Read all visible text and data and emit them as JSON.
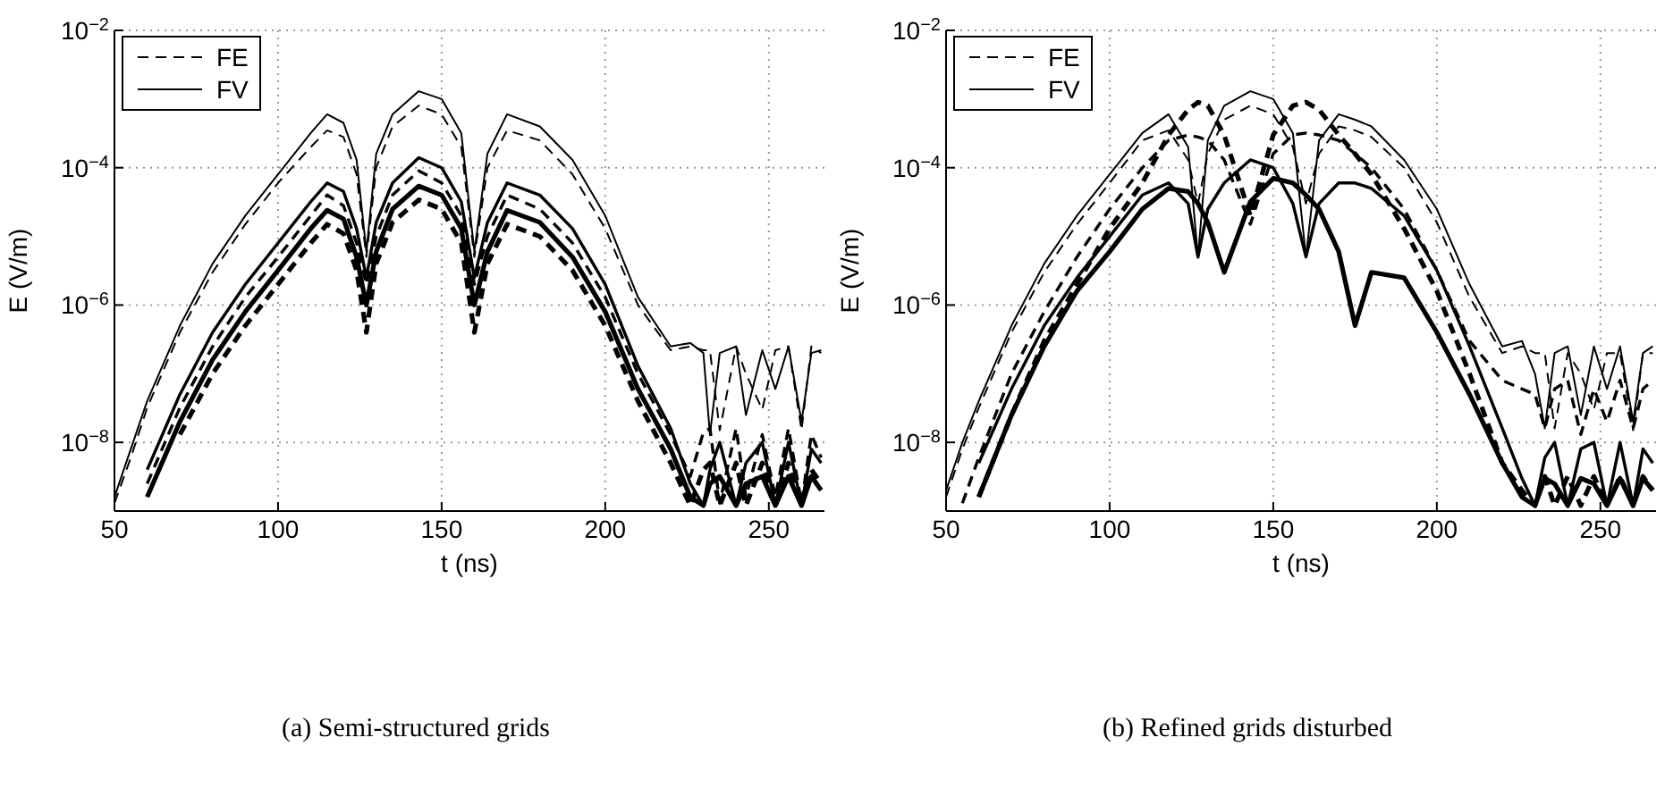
{
  "chart_data": [
    {
      "type": "line",
      "xlabel": "t (ns)",
      "ylabel": "E (V/m)",
      "annotations": [
        "(a) Semi-structured grids"
      ],
      "log": "y",
      "grid": true,
      "legend": "top left",
      "xlim": [
        50,
        267
      ],
      "xticks": [
        50,
        100,
        150,
        200,
        250
      ],
      "ylim": [
        1e-09,
        0.01
      ],
      "yticks": [
        {
          "value": 1e-08,
          "label": "10$^{−8}$"
        },
        {
          "value": 1e-06,
          "label": "10$^{−6}$"
        },
        {
          "value": 0.0001,
          "label": "10$^{−4}$"
        },
        {
          "value": 0.01,
          "label": "10$^{−2}$"
        }
      ],
      "x": [
        50,
        55,
        60,
        70,
        80,
        90,
        100,
        110,
        115,
        120,
        124,
        127,
        130,
        135,
        143,
        150,
        156,
        160,
        164,
        170,
        180,
        190,
        200,
        210,
        220,
        226,
        230,
        232,
        235,
        240,
        243,
        248,
        252,
        256,
        260,
        263,
        266
      ],
      "series": [
        {
          "name": "FE",
          "color": "#000000",
          "line_style": "dashed",
          "values": [
            1.3e-09,
            6e-09,
            3.2e-08,
            4e-07,
            3e-06,
            1.5e-05,
            6e-05,
            0.0002,
            0.00035,
            0.00028,
            8e-05,
            5e-06,
            0.0001,
            0.0004,
            0.0008,
            0.0006,
            0.0002,
            5e-06,
            0.0001,
            0.00035,
            0.00025,
            8e-05,
            1.3e-05,
            1e-06,
            2.2e-07,
            2.5e-07,
            2.2e-07,
            2.2e-07,
            1.5e-08,
            2.5e-07,
            1e-07,
            3e-08,
            2.2e-07,
            2.5e-07,
            1.5e-08,
            2.5e-07,
            2e-07
          ]
        },
        {
          "name": "FV",
          "color": "#000000",
          "line_style": "solid",
          "values": [
            1.6e-09,
            8e-09,
            4e-08,
            5e-07,
            4e-06,
            2e-05,
            8e-05,
            0.00032,
            0.0006,
            0.00045,
            0.00013,
            6e-06,
            0.00016,
            0.0006,
            0.0013,
            0.001,
            0.00032,
            6e-06,
            0.00016,
            0.0006,
            0.0004,
            0.00013,
            2e-05,
            1.3e-06,
            2.5e-07,
            2.8e-07,
            2e-07,
            1.3e-08,
            2e-07,
            2.5e-07,
            2.5e-08,
            2.2e-07,
            6e-08,
            2.5e-07,
            2e-08,
            2e-07,
            2.2e-07
          ]
        },
        {
          "color": "#000000",
          "line_style": "dashed",
          "values": [
            null,
            null,
            2.5e-09,
            3.2e-08,
            2.5e-07,
            1.3e-06,
            5e-06,
            2e-05,
            4e-05,
            2.8e-05,
            8e-06,
            2e-06,
            1e-05,
            4e-05,
            9e-05,
            6e-05,
            2e-05,
            2e-06,
            1e-05,
            4e-05,
            2.5e-05,
            8e-06,
            1.3e-06,
            1e-07,
            1.3e-08,
            3.2e-09,
            1.4e-08,
            1.6e-08,
            1.3e-09,
            1.6e-08,
            1.6e-09,
            1.3e-08,
            1.6e-09,
            1.6e-08,
            1.3e-09,
            1.3e-08,
            6e-09
          ]
        },
        {
          "color": "#000000",
          "line_style": "solid",
          "values": [
            null,
            null,
            4e-09,
            5e-08,
            4e-07,
            2e-06,
            8e-06,
            3.2e-05,
            6e-05,
            4.5e-05,
            1.3e-05,
            2.5e-06,
            1.6e-05,
            6e-05,
            0.00014,
            0.0001,
            3.2e-05,
            2.5e-06,
            1.6e-05,
            6e-05,
            4e-05,
            1.3e-05,
            2e-06,
            1.3e-07,
            1.6e-08,
            2.5e-09,
            1.2e-09,
            4e-09,
            1e-08,
            1.2e-09,
            5e-09,
            1e-08,
            1.2e-09,
            1e-08,
            1.2e-09,
            8e-09,
            5e-09
          ]
        },
        {
          "color": "#000000",
          "line_style": "dashed",
          "values": [
            null,
            null,
            null,
            1.3e-08,
            1e-07,
            5e-07,
            2e-06,
            8e-06,
            1.5e-05,
            1.1e-05,
            3.2e-06,
            4e-07,
            4e-06,
            1.6e-05,
            3.4e-05,
            2.5e-05,
            8e-06,
            4e-07,
            4e-06,
            1.5e-05,
            1e-05,
            3.2e-06,
            5e-07,
            4e-08,
            5e-09,
            1.2e-09,
            4e-09,
            5e-09,
            1.2e-09,
            5e-09,
            1.2e-09,
            5e-09,
            1.2e-09,
            5e-09,
            1.2e-09,
            4e-09,
            2.5e-09
          ]
        },
        {
          "color": "#000000",
          "line_style": "solid",
          "values": [
            null,
            null,
            1.6e-09,
            2e-08,
            1.6e-07,
            8e-07,
            3.2e-06,
            1.3e-05,
            2.4e-05,
            1.8e-05,
            5e-06,
            1e-06,
            6e-06,
            2.5e-05,
            5.4e-05,
            4e-05,
            1.3e-05,
            1e-06,
            6e-06,
            2.4e-05,
            1.6e-05,
            5e-06,
            8e-07,
            6e-08,
            8e-09,
            1.6e-09,
            1.2e-09,
            2.5e-09,
            3.2e-09,
            1.2e-09,
            2.5e-09,
            3.2e-09,
            1.2e-09,
            3.2e-09,
            1.2e-09,
            3.2e-09,
            2e-09
          ]
        }
      ]
    },
    {
      "type": "line",
      "xlabel": "t (ns)",
      "ylabel": "E (V/m)",
      "annotations": [
        "(b) Refined grids disturbed"
      ],
      "log": "y",
      "grid": true,
      "legend": "top left",
      "xlim": [
        50,
        267
      ],
      "xticks": [
        50,
        100,
        150,
        200,
        250
      ],
      "ylim": [
        1e-09,
        0.01
      ],
      "yticks": [
        {
          "value": 1e-08,
          "label": "10$^{−8}$"
        },
        {
          "value": 1e-06,
          "label": "10$^{−6}$"
        },
        {
          "value": 0.0001,
          "label": "10$^{−4}$"
        },
        {
          "value": 0.01,
          "label": "10$^{−2}$"
        }
      ],
      "x": [
        50,
        55,
        60,
        70,
        80,
        90,
        100,
        110,
        118,
        124,
        127,
        130,
        135,
        143,
        150,
        156,
        160,
        164,
        170,
        175,
        180,
        190,
        200,
        210,
        220,
        226,
        230,
        233,
        236,
        240,
        244,
        248,
        252,
        256,
        260,
        263,
        266
      ],
      "series": [
        {
          "name": "FE",
          "color": "#000000",
          "line_style": "dashed",
          "values": [
            1.6e-09,
            8e-09,
            3.2e-08,
            4e-07,
            3e-06,
            1.5e-05,
            6e-05,
            0.00025,
            0.00035,
            0.00013,
            3e-05,
            0.00016,
            0.0005,
            0.0008,
            0.0006,
            0.0002,
            3e-05,
            0.00016,
            0.0004,
            0.00035,
            0.00028,
            0.0001,
            1.6e-05,
            1.3e-06,
            2e-07,
            2.5e-07,
            2e-07,
            2e-07,
            1.6e-08,
            2e-07,
            1e-07,
            3e-08,
            2e-07,
            2e-07,
            1.5e-08,
            2e-07,
            2e-07
          ]
        },
        {
          "name": "FV",
          "color": "#000000",
          "line_style": "solid",
          "values": [
            2e-09,
            1e-08,
            4e-08,
            5e-07,
            4e-06,
            2e-05,
            8e-05,
            0.00032,
            0.0006,
            0.0002,
            5e-06,
            0.00025,
            0.0008,
            0.0013,
            0.001,
            0.00032,
            5e-06,
            0.00025,
            0.0006,
            0.0005,
            0.0004,
            0.00013,
            2.5e-05,
            2e-06,
            2.5e-07,
            3e-07,
            1e-07,
            1.6e-08,
            2e-07,
            2.5e-07,
            2.5e-08,
            2.5e-07,
            6e-08,
            2.5e-07,
            2e-08,
            2e-07,
            2.5e-07
          ]
        },
        {
          "color": "#000000",
          "line_style": "dashed",
          "values": [
            null,
            1.3e-09,
            6e-09,
            1e-07,
            8e-07,
            5e-06,
            2.5e-05,
            0.0001,
            0.00025,
            0.0003,
            0.00028,
            0.00025,
            0.00013,
            1.5e-05,
            0.00016,
            0.0003,
            0.00032,
            0.0003,
            0.00025,
            0.00016,
            0.0001,
            2.5e-05,
            3.2e-06,
            3e-07,
            8e-08,
            6e-08,
            5e-08,
            1.6e-08,
            6e-08,
            8e-08,
            1.3e-08,
            6e-08,
            2e-08,
            8e-08,
            1.6e-08,
            6e-08,
            8e-08
          ]
        },
        {
          "color": "#000000",
          "line_style": "solid",
          "values": [
            null,
            null,
            5e-09,
            6e-08,
            5e-07,
            2.5e-06,
            1e-05,
            4e-05,
            6e-05,
            3e-05,
            5e-06,
            2.5e-05,
            6e-05,
            0.00013,
            0.0001,
            3e-05,
            5e-06,
            3e-05,
            6e-05,
            6e-05,
            5e-05,
            2e-05,
            3.2e-06,
            2.5e-07,
            1.6e-08,
            3e-09,
            1.2e-09,
            6e-09,
            1e-08,
            1.2e-09,
            8e-09,
            1e-08,
            1.2e-09,
            1e-08,
            1.2e-09,
            8e-09,
            5e-09
          ]
        },
        {
          "color": "#000000",
          "line_style": "dashed",
          "values": [
            null,
            null,
            1.6e-09,
            2.5e-08,
            3e-07,
            2e-06,
            1.3e-05,
            6e-05,
            0.0003,
            0.0007,
            0.0009,
            0.0008,
            0.0003,
            2e-05,
            0.0003,
            0.0008,
            0.0009,
            0.0007,
            0.0003,
            0.00016,
            8e-05,
            1.3e-05,
            1.6e-06,
            1e-07,
            5e-09,
            2e-09,
            1.2e-09,
            3.2e-09,
            1.2e-09,
            3.2e-09,
            1.2e-09,
            3.2e-09,
            1.2e-09,
            3.2e-09,
            1.2e-09,
            3.2e-09,
            2e-09
          ]
        },
        {
          "color": "#000000",
          "line_style": "solid",
          "values": [
            null,
            null,
            1.6e-09,
            2.5e-08,
            2.5e-07,
            1.6e-06,
            6e-06,
            2.5e-05,
            5e-05,
            4.5e-05,
            3e-05,
            1.6e-05,
            3e-06,
            3.2e-05,
            7e-05,
            6e-05,
            4e-05,
            2.5e-05,
            6e-06,
            5e-07,
            3e-06,
            2.5e-06,
            4e-07,
            5e-08,
            5e-09,
            1.6e-09,
            1.2e-09,
            3e-09,
            2.5e-09,
            1.2e-09,
            3e-09,
            2.5e-09,
            1.2e-09,
            3e-09,
            1.2e-09,
            3e-09,
            2e-09
          ]
        }
      ]
    }
  ]
}
